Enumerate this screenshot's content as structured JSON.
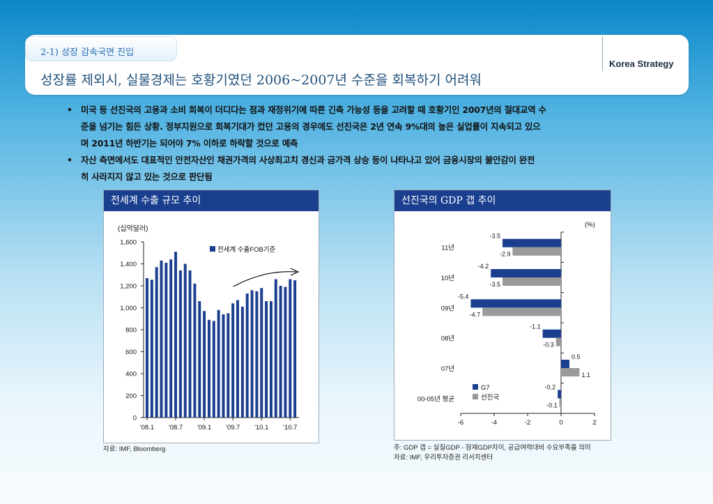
{
  "header": {
    "section_label": "2-1) 성장 감속국면 진입",
    "brand": "Korea Strategy",
    "title": "성장률 제외시, 실물경제는 호황기였던 2006~2007년 수준을 회복하기 어려워"
  },
  "bullets": [
    {
      "marker": "•",
      "lines": [
        "미국 등 선진국의 고용과 소비 회복이 더디다는 점과 재정위기에 따른 긴축 가능성 등을 고려할 때 호황기인 2007년의 절대교역 수",
        "준을 넘기는 힘든 상황. 정부지원으로 회복기대가 컸던 고용의 경우에도 선진국은 2년 연속 9%대의 높은 실업률이 지속되고 있으",
        "며 2011년 하반기는 되어야 7% 이하로 하락할 것으로 예측"
      ]
    },
    {
      "marker": "•",
      "lines": [
        "자산 측면에서도 대표적인 안전자산인 채권가격의 사상최고치 경신과 금가격 상승 등이 나타나고 있어 금융시장의 불안감이 완전",
        "히 사라지지 않고 있는 것으로 판단됨"
      ]
    }
  ],
  "chart_data": [
    {
      "type": "bar",
      "title": "전세계 수출 규모 추이",
      "unit_label": "(십억달러)",
      "legend": "전세계 수출FOB기준",
      "legend_position": "top-right",
      "ylim": [
        0,
        1600
      ],
      "yticks": [
        "0",
        "200",
        "400",
        "600",
        "800",
        "1,000",
        "1,200",
        "1,400",
        "1,600"
      ],
      "ytick_values": [
        0,
        200,
        400,
        600,
        800,
        1000,
        1200,
        1400,
        1600
      ],
      "xtick_labels": [
        "'08.1",
        "'08.7",
        "'09.1",
        "'09.7",
        "'10.1",
        "'10.7"
      ],
      "xtick_index": [
        0,
        6,
        12,
        18,
        24,
        30
      ],
      "values": [
        1270,
        1255,
        1370,
        1430,
        1410,
        1440,
        1510,
        1340,
        1400,
        1340,
        1220,
        1060,
        970,
        890,
        880,
        980,
        940,
        950,
        1040,
        1070,
        1010,
        1130,
        1160,
        1150,
        1180,
        1060,
        1060,
        1260,
        1200,
        1190,
        1260,
        1250
      ],
      "color": "#1a3f8f",
      "source": "자료: IMF, Bloomberg"
    },
    {
      "type": "bar",
      "orientation": "horizontal",
      "title": "선진국의 GDP 갭 추이",
      "unit_label": "(%)",
      "categories": [
        "11년",
        "10년",
        "09년",
        "08년",
        "07년",
        "00-05년 평균"
      ],
      "series": [
        {
          "name": "G7",
          "color": "#1a3f8f",
          "values": [
            -3.5,
            -4.2,
            -5.4,
            -1.1,
            0.5,
            -0.2
          ],
          "labels": [
            "-3.5",
            "-4.2",
            "-5.4",
            "-1.1",
            "0.5",
            "-0.2"
          ]
        },
        {
          "name": "선진국",
          "color": "#9a9a9a",
          "values": [
            -2.9,
            -3.5,
            -4.7,
            -0.3,
            1.1,
            -0.1
          ],
          "labels": [
            "-2.9",
            "-3.5",
            "-4.7",
            "-0.3",
            "1.1",
            "-0.1"
          ]
        }
      ],
      "xlim": [
        -6,
        2
      ],
      "xticks": [
        "-6",
        "-4",
        "-2",
        "0",
        "2"
      ],
      "xtick_values": [
        -6,
        -4,
        -2,
        0,
        2
      ],
      "legend_position": "bottom-left",
      "source_lines": [
        "주: GDP 갭 = 실질GDP - 잠재GDP차이, 공급여력대비 수요부족을 의미",
        "자료: IMF, 우리투자증권 리서치센터"
      ]
    }
  ]
}
